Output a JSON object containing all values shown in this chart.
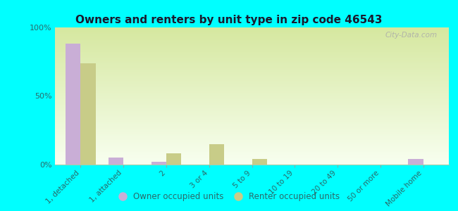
{
  "title": "Owners and renters by unit type in zip code 46543",
  "categories": [
    "1, detached",
    "1, attached",
    "2",
    "3 or 4",
    "5 to 9",
    "10 to 19",
    "20 to 49",
    "50 or more",
    "Mobile home"
  ],
  "owner_values": [
    88,
    5,
    2,
    0,
    0,
    0,
    0,
    0,
    4
  ],
  "renter_values": [
    74,
    0,
    8,
    15,
    4,
    0,
    0,
    0,
    0
  ],
  "owner_color": "#c9aed6",
  "renter_color": "#c8cc88",
  "background_color": "#00ffff",
  "gradient_top": "#d6e8a0",
  "gradient_bottom": "#f8fff0",
  "ylim": [
    0,
    100
  ],
  "yticks": [
    0,
    50,
    100
  ],
  "ytick_labels": [
    "0%",
    "50%",
    "100%"
  ],
  "legend_owner": "Owner occupied units",
  "legend_renter": "Renter occupied units",
  "watermark": "City-Data.com",
  "bar_width": 0.35,
  "title_color": "#1a1a2e",
  "tick_label_color": "#2a6a6a"
}
